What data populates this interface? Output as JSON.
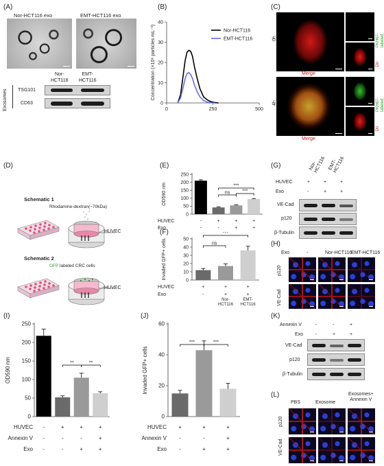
{
  "panels": {
    "A": "(A)",
    "B": "(B)",
    "C": "(C)",
    "D": "(D)",
    "E": "(E)",
    "F": "(F)",
    "G": "(G)",
    "H": "(H)",
    "I": "(I)",
    "J": "(J)",
    "K": "(K)",
    "L": "(L)"
  },
  "panelA": {
    "em_labels": [
      "Nor-HCT116 exo",
      "EMT-HCT116 exo"
    ],
    "blot_cols": [
      "Nor-\nHCT116",
      "EMT-\nHCT116"
    ],
    "blot_group": "Exosomes",
    "blot_rows": [
      "TSG101",
      "CD63"
    ]
  },
  "panelC": {
    "rows": [
      "0h",
      "4h"
    ],
    "merge": "Merge",
    "side_labels": [
      "PKH67-\nlabeled",
      "DiI"
    ]
  },
  "panelD": {
    "schematic1": "Schematic 1",
    "dextran": "Rhodamine-dextran(~70kDa)",
    "huvec": "HUVEC",
    "schematic2": "Schematic 2",
    "gfp_word": "GFP",
    "gfp_rest": " labeled CRC cells",
    "huvec2": "HUVEC"
  },
  "panelG": {
    "cond_rows": [
      "HUVEC",
      "Exo"
    ],
    "cond_values": [
      [
        "+",
        "+",
        "+"
      ],
      [
        "-",
        "+",
        "+"
      ]
    ],
    "col_heads": [
      "Nor-\nHCT116",
      "EMT-\nHCT116"
    ],
    "blot_rows": [
      "VE-Cad",
      "p120",
      "β-Tubulin"
    ]
  },
  "panelH": {
    "exo_label": "Exo",
    "cols": [
      "-",
      "Nor-HCT116",
      "EMT-HCT116"
    ],
    "rows": [
      "p120",
      "VE-Cad"
    ]
  },
  "panelK": {
    "cond_rows": [
      "Annexin V",
      "Exo"
    ],
    "cond_values": [
      [
        "-",
        "-",
        "+"
      ],
      [
        "-",
        "+",
        "+"
      ]
    ],
    "blot_rows": [
      "VE-Cad",
      "p120",
      "β-Tubulin"
    ]
  },
  "panelL": {
    "cols": [
      "PBS",
      "Exosome",
      "Exosomes+\nAnnexin V"
    ],
    "rows": [
      "p120",
      "VE-Cad"
    ]
  },
  "chart_data": [
    {
      "panel": "B",
      "type": "line",
      "ylabel": "Concentration (×10⁸ particles mL⁻¹)",
      "xlim": [
        0,
        500
      ],
      "ylim": [
        0,
        40
      ],
      "xticks": [
        0,
        250,
        500
      ],
      "yticks": [
        0,
        10,
        20,
        30,
        40
      ],
      "legend_position": "top-right",
      "series": [
        {
          "name": "Nor-HCT116",
          "color": "#000000",
          "x": [
            60,
            75,
            90,
            100,
            110,
            120,
            130,
            140,
            150,
            165,
            180,
            200,
            220,
            240,
            260,
            280
          ],
          "y": [
            0,
            4,
            14,
            21,
            25,
            26,
            25.5,
            23,
            18,
            12,
            7,
            3,
            1.5,
            0.6,
            0.2,
            0
          ]
        },
        {
          "name": "EMT-HCT116",
          "color": "#6a6ae8",
          "x": [
            60,
            75,
            90,
            100,
            110,
            120,
            130,
            140,
            150,
            165,
            180,
            200,
            220,
            240,
            260
          ],
          "y": [
            0,
            2.5,
            8,
            12,
            14.5,
            15,
            14,
            12,
            9,
            5.5,
            3,
            1.2,
            0.4,
            0.1,
            0
          ]
        }
      ]
    },
    {
      "panel": "E",
      "type": "bar",
      "ylabel": "OD590 nm",
      "ylim": [
        0,
        250
      ],
      "yticks": [
        0,
        50,
        100,
        150,
        200,
        250
      ],
      "values": [
        210,
        42,
        55,
        95
      ],
      "errors": [
        6,
        3,
        4,
        3
      ],
      "colors": [
        "#000000",
        "#6a6a6a",
        "#9a9a9a",
        "#cfcfcf"
      ],
      "conditions": [
        {
          "label": "HUVEC",
          "values": [
            "-",
            "+",
            "+",
            "+"
          ]
        },
        {
          "label": "Exo",
          "values": [
            "-",
            "-",
            "+",
            "+"
          ]
        }
      ],
      "category_labels": [
        "",
        "",
        "Nor-\nHCT116",
        "EMT-\nHCT116"
      ],
      "significance": [
        {
          "from": 1,
          "to": 3,
          "label": "***"
        },
        {
          "from": 1,
          "to": 2,
          "label": "ns"
        },
        {
          "from": 2,
          "to": 3,
          "label": "***"
        }
      ]
    },
    {
      "panel": "F",
      "type": "bar",
      "ylabel": "Invaded GFP+ cells",
      "ylim": [
        0,
        50
      ],
      "yticks": [
        0,
        10,
        20,
        30,
        40,
        50
      ],
      "values": [
        12,
        17,
        36
      ],
      "errors": [
        2,
        2.5,
        5
      ],
      "colors": [
        "#6a6a6a",
        "#9a9a9a",
        "#cfcfcf"
      ],
      "conditions": [
        {
          "label": "HUVEC",
          "values": [
            "+",
            "+",
            "+"
          ]
        },
        {
          "label": "Exo",
          "values": [
            "-",
            "+",
            "+"
          ]
        }
      ],
      "category_labels": [
        "",
        "Nor-\nHCT116",
        "EMT-\nHCT116"
      ],
      "significance": [
        {
          "from": 0,
          "to": 2,
          "label": "***"
        },
        {
          "from": 0,
          "to": 1,
          "label": "ns"
        }
      ]
    },
    {
      "panel": "I",
      "type": "bar",
      "ylabel": "OD590 nm",
      "ylim": [
        0,
        250
      ],
      "yticks": [
        0,
        50,
        100,
        150,
        200,
        250
      ],
      "values": [
        218,
        52,
        105,
        63
      ],
      "errors": [
        18,
        4,
        12,
        4
      ],
      "colors": [
        "#000000",
        "#6a6a6a",
        "#9a9a9a",
        "#cfcfcf"
      ],
      "conditions": [
        {
          "label": "HUVEC",
          "values": [
            "-",
            "+",
            "+",
            "+"
          ]
        },
        {
          "label": "Annexin V",
          "values": [
            "-",
            "-",
            "-",
            "+"
          ]
        },
        {
          "label": "Exo",
          "values": [
            "-",
            "-",
            "+",
            "+"
          ]
        }
      ],
      "significance": [
        {
          "from": 1,
          "to": 2,
          "label": "**"
        },
        {
          "from": 2,
          "to": 3,
          "label": "**"
        }
      ]
    },
    {
      "panel": "J",
      "type": "bar",
      "ylabel": "Invaded GFP+ cells",
      "ylim": [
        0,
        60
      ],
      "yticks": [
        0,
        20,
        40,
        60
      ],
      "values": [
        15,
        43,
        18
      ],
      "errors": [
        2,
        6,
        3.5
      ],
      "colors": [
        "#6a6a6a",
        "#9a9a9a",
        "#cfcfcf"
      ],
      "conditions": [
        {
          "label": "HUVEC",
          "values": [
            "+",
            "+",
            "+"
          ]
        },
        {
          "label": "Annexin V",
          "values": [
            "-",
            "-",
            "+"
          ]
        },
        {
          "label": "Exo",
          "values": [
            "-",
            "+",
            "+"
          ]
        }
      ],
      "significance": [
        {
          "from": 0,
          "to": 1,
          "label": "***"
        },
        {
          "from": 1,
          "to": 2,
          "label": "***"
        }
      ]
    }
  ]
}
